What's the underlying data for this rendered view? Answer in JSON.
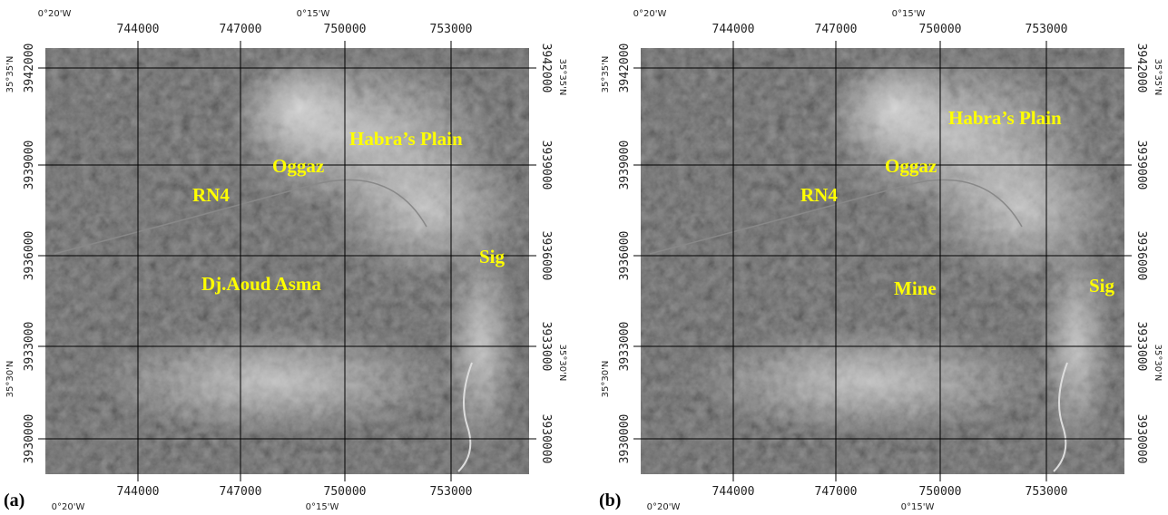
{
  "panels": [
    {
      "label": "(a)",
      "top_labels": [
        "0°20'W",
        "744000",
        "747000",
        "0°15'W",
        "750000",
        "753000"
      ],
      "bottom_labels": [
        "744000",
        "747000",
        "750000",
        "753000",
        "0°20'W",
        "0°15'W"
      ],
      "left_labels": [
        "35°35'N",
        "3942000",
        "3939000",
        "3936000",
        "3933000",
        "35°30'N",
        "3930000"
      ],
      "right_labels": [
        "3942000",
        "35°35'N",
        "3939000",
        "3936000",
        "3933000",
        "35°30'N",
        "3930000"
      ],
      "places": [
        "Habra’s Plain",
        "Oggaz",
        "RN4",
        "Sig",
        "Dj.Aoud Asma"
      ]
    },
    {
      "label": "(b)",
      "top_labels": [
        "0°20'W",
        "744000",
        "747000",
        "0°15'W",
        "750000",
        "753000"
      ],
      "bottom_labels": [
        "744000",
        "747000",
        "750000",
        "753000",
        "0°20'W",
        "0°15'W"
      ],
      "left_labels": [
        "35°35'N",
        "3942000",
        "3939000",
        "3936000",
        "3933000",
        "35°30'N",
        "3930000"
      ],
      "right_labels": [
        "3942000",
        "35°35'N",
        "3939000",
        "3936000",
        "3933000",
        "35°30'N",
        "3930000"
      ],
      "places": [
        "Habra’s Plain",
        "Oggaz",
        "RN4",
        "Mine",
        "Sig"
      ]
    }
  ]
}
